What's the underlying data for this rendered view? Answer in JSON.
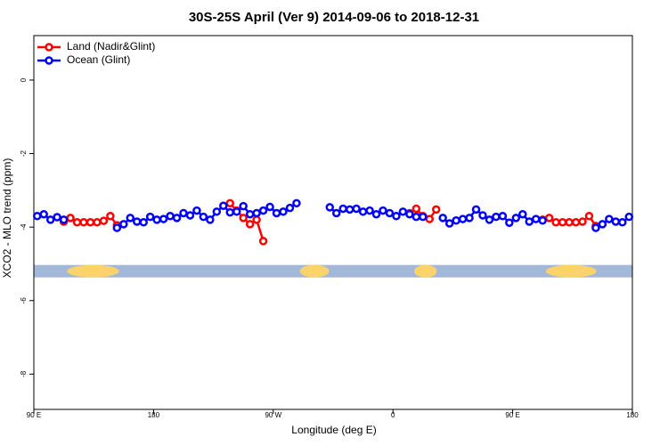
{
  "chart_data": {
    "type": "line",
    "title": "30S-25S April (Ver 9)   2014-09-06 to 2018-12-31",
    "x_label": "Longitude (deg E)",
    "y_label": "XCO2 - MLO trend (ppm)",
    "x": [
      92.5,
      97.5,
      102.5,
      107.5,
      112.5,
      117.5,
      122.5,
      127.5,
      132.5,
      137.5,
      142.5,
      147.5,
      152.5,
      157.5,
      162.5,
      167.5,
      172.5,
      177.5,
      182.5,
      187.5,
      192.5,
      197.5,
      202.5,
      207.5,
      212.5,
      217.5,
      222.5,
      227.5,
      232.5,
      237.5,
      242.5,
      247.5,
      252.5,
      257.5,
      262.5,
      267.5,
      272.5,
      277.5,
      282.5,
      287.5,
      292.5,
      297.5,
      302.5,
      307.5,
      312.5,
      317.5,
      322.5,
      327.5,
      332.5,
      337.5,
      342.5,
      347.5,
      352.5,
      357.5,
      362.5,
      367.5,
      372.5,
      377.5,
      382.5,
      387.5,
      392.5,
      397.5,
      402.5,
      407.5,
      412.5,
      417.5,
      422.5,
      427.5,
      432.5,
      437.5,
      442.5,
      447.5,
      452.5,
      457.5,
      462.5,
      467.5,
      472.5,
      477.5,
      482.5,
      487.5,
      492.5,
      497.5,
      502.5,
      507.5,
      512.5,
      517.5,
      522.5,
      527.5,
      532.5,
      537.5
    ],
    "series": [
      {
        "name": "Land (Nadir&Glint)",
        "color": "#ff0000",
        "values": [
          null,
          null,
          null,
          null,
          -3.85,
          -3.75,
          -3.87,
          -3.87,
          -3.87,
          -3.87,
          -3.83,
          -3.7,
          -3.95,
          null,
          null,
          null,
          null,
          null,
          null,
          null,
          null,
          null,
          null,
          null,
          null,
          null,
          null,
          null,
          null,
          -3.35,
          -3.55,
          -3.75,
          -3.92,
          -3.8,
          -4.38,
          null,
          null,
          null,
          null,
          null,
          null,
          null,
          null,
          null,
          null,
          null,
          null,
          null,
          null,
          null,
          null,
          null,
          null,
          null,
          null,
          null,
          -3.62,
          -3.5,
          -3.7,
          -3.78,
          -3.52,
          null,
          null,
          null,
          null,
          null,
          null,
          null,
          null,
          null,
          null,
          null,
          null,
          null,
          null,
          null,
          -3.8,
          -3.75,
          -3.87,
          -3.87,
          -3.87,
          -3.87,
          -3.85,
          -3.7,
          -3.97,
          null,
          null,
          null,
          null,
          null
        ]
      },
      {
        "name": "Ocean (Glint)",
        "color": "#0000ff",
        "values": [
          -3.7,
          -3.65,
          -3.8,
          -3.73,
          -3.8,
          null,
          null,
          null,
          null,
          null,
          null,
          null,
          -4.02,
          -3.92,
          -3.75,
          -3.85,
          -3.87,
          -3.72,
          -3.8,
          -3.78,
          -3.7,
          -3.75,
          -3.62,
          -3.68,
          -3.55,
          -3.72,
          -3.8,
          -3.58,
          -3.42,
          -3.6,
          -3.58,
          -3.43,
          -3.65,
          -3.62,
          -3.55,
          -3.45,
          -3.62,
          -3.58,
          -3.48,
          -3.35,
          null,
          null,
          null,
          null,
          -3.46,
          -3.62,
          -3.5,
          -3.52,
          -3.5,
          -3.58,
          -3.55,
          -3.65,
          -3.55,
          -3.62,
          -3.7,
          -3.58,
          -3.65,
          -3.72,
          -3.72,
          null,
          null,
          -3.75,
          -3.9,
          -3.82,
          -3.78,
          -3.75,
          -3.52,
          -3.68,
          -3.8,
          -3.72,
          -3.7,
          -3.88,
          -3.75,
          -3.65,
          -3.85,
          -3.78,
          -3.82,
          null,
          null,
          null,
          null,
          null,
          null,
          null,
          -4.02,
          -3.92,
          -3.78,
          -3.85,
          -3.87,
          -3.72
        ]
      }
    ],
    "surface_band": {
      "y": -5.2,
      "ocean_color": "#a3b8d8",
      "land_color": "#fcd36b",
      "land": [
        [
          115,
          154
        ],
        [
          290,
          312
        ],
        [
          376,
          393
        ],
        [
          475,
          513
        ]
      ]
    },
    "xlim": [
      90,
      540
    ],
    "xticks": [
      {
        "value": 90,
        "label": "90 E"
      },
      180,
      {
        "value": 270,
        "label": "90 W"
      },
      {
        "value": 360,
        "label": "0"
      },
      {
        "value": 450,
        "label": "90 E"
      },
      {
        "value": 540,
        "label": "180"
      }
    ],
    "ylim": [
      -8.96,
      1.21
    ],
    "yticks": [
      0,
      -2,
      -4,
      -6,
      -8
    ],
    "legend": "top-left"
  }
}
